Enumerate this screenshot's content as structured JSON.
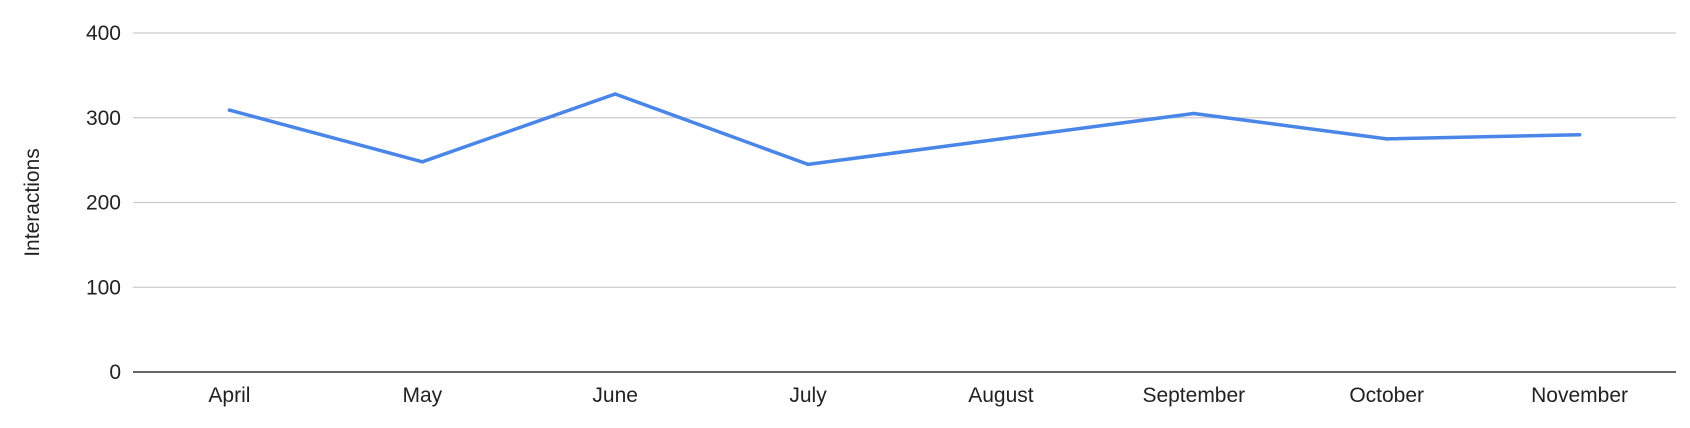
{
  "chart_data": {
    "type": "line",
    "title": "",
    "xlabel": "",
    "ylabel": "Interactions",
    "categories": [
      "April",
      "May",
      "June",
      "July",
      "August",
      "September",
      "October",
      "November"
    ],
    "series": [
      {
        "values": [
          309,
          248,
          328,
          245,
          275,
          305,
          275,
          280
        ],
        "color": "#4a86e8"
      }
    ],
    "ylim": [
      0,
      400
    ],
    "yticks": [
      0,
      100,
      200,
      300,
      400
    ],
    "grid": true,
    "legend": "none"
  }
}
